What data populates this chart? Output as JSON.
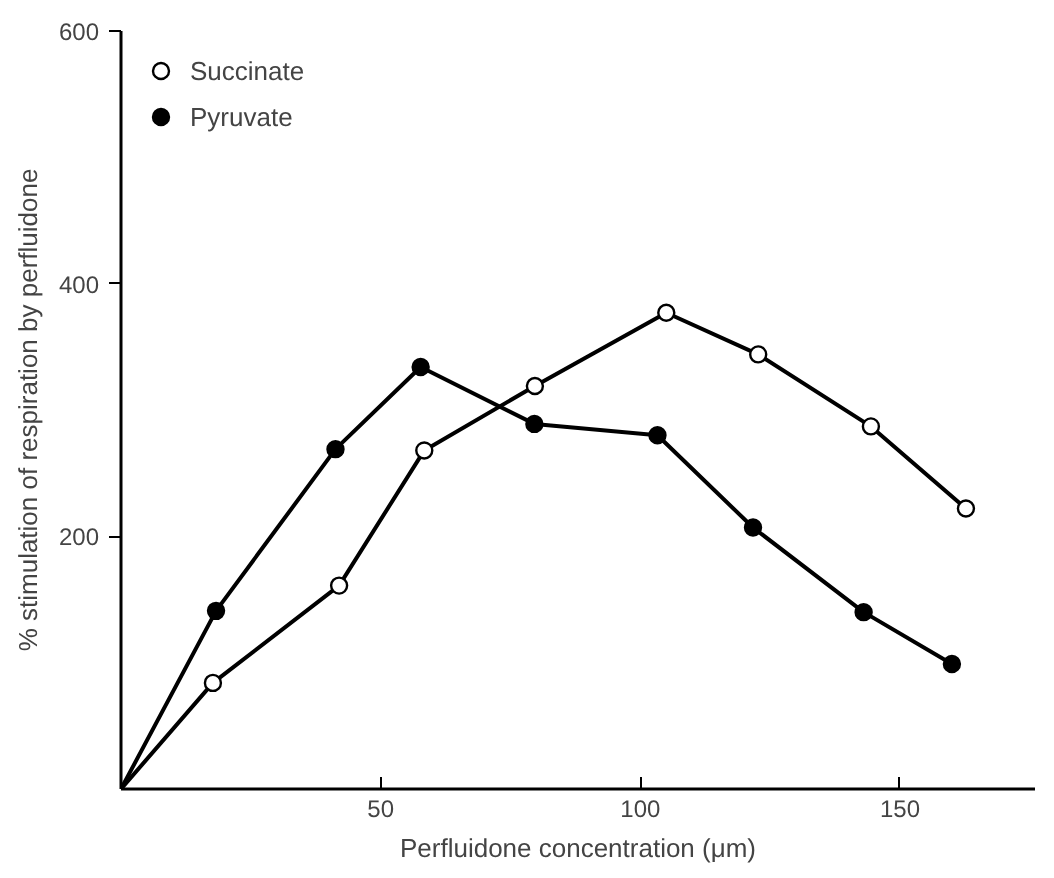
{
  "chart_data": {
    "type": "line",
    "xlabel": "Perfluidone concentration (μm)",
    "ylabel": "% stimulation of respiration by perfluidone",
    "xlim": [
      0,
      176
    ],
    "ylim": [
      0,
      600
    ],
    "xticks": [
      50,
      100,
      150
    ],
    "yticks": [
      200,
      400,
      600
    ],
    "grid": false,
    "legend": "top left",
    "line_style": "solid",
    "series": [
      {
        "name": "Succinate",
        "color": "#000000",
        "marker": "circle",
        "x": [
          0,
          17.7,
          42,
          58.4,
          79.7,
          105,
          122.7,
          144.4,
          162.7
        ],
        "values": [
          0,
          84,
          161,
          268,
          319,
          377,
          344,
          287,
          222
        ]
      },
      {
        "name": "Pyruvate",
        "color": "#000000",
        "marker": "circle",
        "x": [
          0,
          18.3,
          41.3,
          57.7,
          79.6,
          103.3,
          121.7,
          143,
          160
        ],
        "values": [
          0,
          141,
          269,
          334,
          289,
          280,
          207,
          140,
          99
        ]
      }
    ]
  }
}
